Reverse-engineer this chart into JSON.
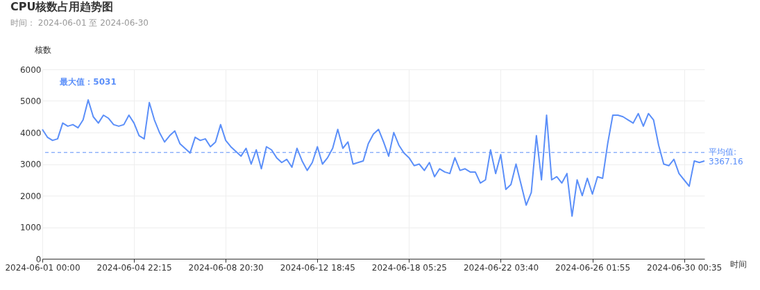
{
  "chart_data": {
    "type": "line",
    "title": "CPU核数占用趋势图",
    "subtitle": "时间：  2024-06-01 至 2024-06-30",
    "xlabel": "时间",
    "ylabel": "核数",
    "categories": [
      "2024-06-01 00:00",
      null,
      null,
      null,
      null,
      null,
      null,
      null,
      null,
      null,
      null,
      null,
      null,
      null,
      null,
      null,
      null,
      null,
      "2024-06-04 22:15",
      null,
      null,
      null,
      null,
      null,
      null,
      null,
      null,
      null,
      null,
      null,
      null,
      null,
      null,
      null,
      null,
      null,
      "2024-06-08 20:30",
      null,
      null,
      null,
      null,
      null,
      null,
      null,
      null,
      null,
      null,
      null,
      null,
      null,
      null,
      null,
      null,
      null,
      "2024-06-12 18:45",
      null,
      null,
      null,
      null,
      null,
      null,
      null,
      null,
      null,
      null,
      null,
      null,
      null,
      null,
      null,
      null,
      null,
      "2024-06-18 05:25",
      null,
      null,
      null,
      null,
      null,
      null,
      null,
      null,
      null,
      null,
      null,
      null,
      null,
      null,
      null,
      null,
      null,
      "2024-06-22 03:40",
      null,
      null,
      null,
      null,
      null,
      null,
      null,
      null,
      null,
      null,
      null,
      null,
      null,
      null,
      null,
      null,
      null,
      "2024-06-26 01:55",
      null,
      null,
      null,
      null,
      null,
      null,
      null,
      null,
      null,
      null,
      null,
      null,
      null,
      null,
      null,
      null,
      null,
      "2024-06-30 00:35",
      null,
      null,
      null,
      null
    ],
    "series": [
      {
        "color": "#5b8ff9",
        "values": [
          4100,
          3850,
          3750,
          3800,
          4300,
          4200,
          4250,
          4150,
          4400,
          5031,
          4500,
          4300,
          4550,
          4450,
          4250,
          4200,
          4250,
          4550,
          4300,
          3900,
          3800,
          4950,
          4400,
          4000,
          3700,
          3900,
          4050,
          3650,
          3500,
          3350,
          3850,
          3750,
          3800,
          3550,
          3700,
          4250,
          3750,
          3550,
          3400,
          3250,
          3500,
          3000,
          3450,
          2850,
          3550,
          3450,
          3200,
          3050,
          3150,
          2900,
          3500,
          3100,
          2800,
          3050,
          3550,
          3000,
          3200,
          3500,
          4100,
          3500,
          3700,
          3000,
          3050,
          3100,
          3650,
          3950,
          4100,
          3700,
          3250,
          4000,
          3600,
          3350,
          3200,
          2950,
          3000,
          2800,
          3050,
          2600,
          2850,
          2750,
          2700,
          3200,
          2800,
          2850,
          2750,
          2750,
          2400,
          2500,
          3450,
          2700,
          3300,
          2200,
          2350,
          3000,
          2350,
          1700,
          2100,
          3900,
          2500,
          4550,
          2500,
          2600,
          2400,
          2700,
          1350,
          2500,
          2000,
          2550,
          2050,
          2600,
          2550,
          3650,
          4550,
          4550,
          4500,
          4400,
          4300,
          4600,
          4200,
          4600,
          4400,
          3600,
          3000,
          2950,
          3150,
          2700,
          2500,
          2300,
          3100,
          3050,
          3100
        ]
      }
    ],
    "ylim": [
      0,
      6000
    ],
    "yticks": [
      0,
      1000,
      2000,
      3000,
      4000,
      5000,
      6000
    ],
    "grid": true,
    "marker": "none",
    "line_style": "solid",
    "ref_lines": [
      {
        "axis": "y",
        "value": 3367.16,
        "label": "平均值:\n3367.16",
        "color": "#5b8ff9",
        "line_style": "dashed"
      }
    ],
    "annotations": [
      "最大值：5031"
    ]
  }
}
